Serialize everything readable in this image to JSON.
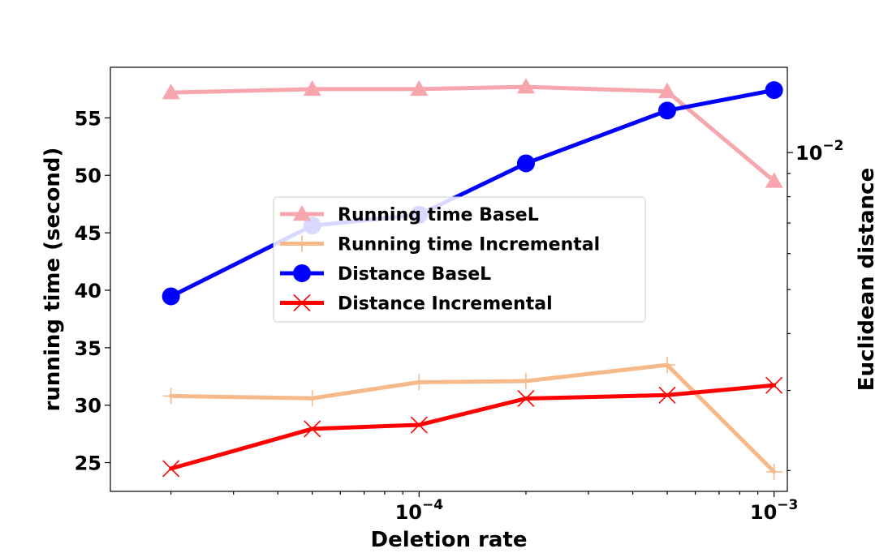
{
  "chart_data": {
    "type": "line",
    "xlabel": "Deletion rate",
    "ylabel_left": "running time (second)",
    "ylabel_right": "Euclidean distance",
    "x_scale": "log",
    "x": [
      2e-05,
      5e-05,
      0.0001,
      0.0002,
      0.0005,
      0.001
    ],
    "xlim": [
      1.35e-05,
      0.00109
    ],
    "x_ticks": [
      {
        "value": 0.0001,
        "label": "10",
        "exp": "−4"
      },
      {
        "value": 0.001,
        "label": "10",
        "exp": "−3"
      }
    ],
    "y_left_lim": [
      22.5,
      59.4
    ],
    "y_left_ticks": [
      25,
      30,
      35,
      40,
      45,
      50,
      55
    ],
    "y_right_scale": "log",
    "y_right_lim": [
      0.0018,
      0.0154
    ],
    "y_right_ticks": [
      {
        "value": 0.01,
        "label": "10",
        "exp": "−2"
      }
    ],
    "grid": false,
    "legend_position": "center",
    "series": [
      {
        "name": "Running time BaseL",
        "axis": "left",
        "color": "#f7a6ad",
        "marker": "triangle",
        "values": [
          57.2,
          57.5,
          57.5,
          57.7,
          57.3,
          49.5
        ]
      },
      {
        "name": "Running time Incremental",
        "axis": "left",
        "color": "#f5b98a",
        "marker": "plus",
        "values": [
          30.8,
          30.6,
          32.0,
          32.1,
          33.5,
          24.2
        ]
      },
      {
        "name": "Distance BaseL",
        "axis": "right",
        "color": "#0000ff",
        "marker": "circle",
        "values": [
          0.00483,
          0.00691,
          0.0073,
          0.00947,
          0.01237,
          0.01372
        ]
      },
      {
        "name": "Distance Incremental",
        "axis": "right",
        "color": "#ff0000",
        "marker": "x",
        "values": [
          0.00202,
          0.00247,
          0.00252,
          0.00288,
          0.00293,
          0.00308
        ]
      }
    ]
  }
}
